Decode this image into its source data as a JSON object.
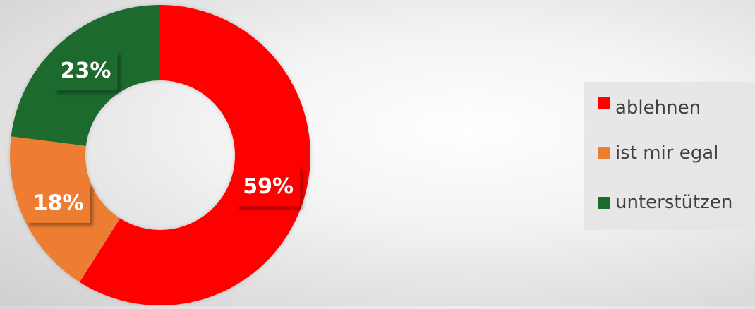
{
  "chart_data": {
    "type": "pie",
    "donut": true,
    "categories": [
      "ablehnen",
      "ist mir egal",
      "unterstützen"
    ],
    "values": [
      59,
      18,
      23
    ],
    "labels": [
      "59%",
      "18%",
      "23%"
    ],
    "colors": [
      "#ff0000",
      "#ed7d31",
      "#1b6b2d"
    ],
    "legend_position": "right",
    "start_angle_deg": 0,
    "direction": "clockwise"
  }
}
